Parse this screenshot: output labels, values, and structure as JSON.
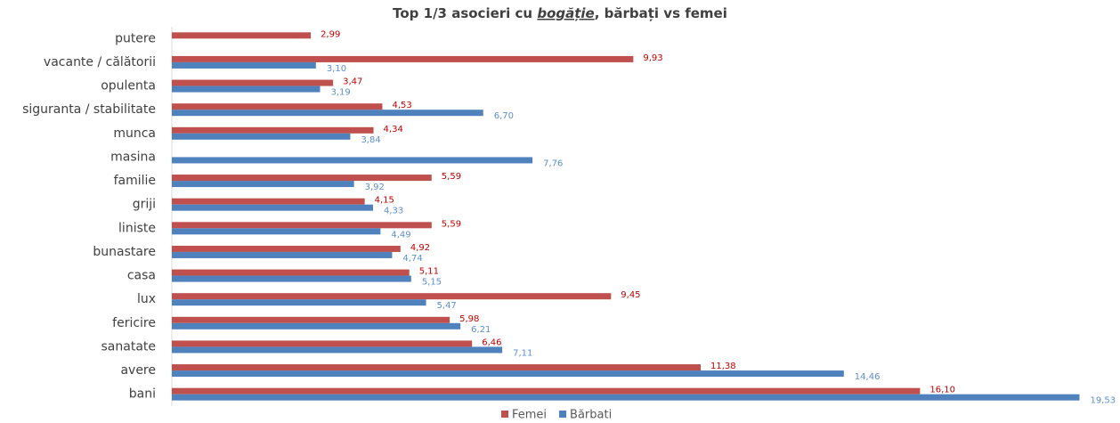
{
  "chart_data": {
    "type": "hbar",
    "title_parts": [
      "Top 1/3 asocieri cu ",
      "bogăție",
      ", bărbați vs femei"
    ],
    "categories": [
      "putere",
      "vacante / călătorii",
      "opulenta",
      "siguranta / stabilitate",
      "munca",
      "masina",
      "familie",
      "griji",
      "liniste",
      "bunastare",
      "casa",
      "lux",
      "fericire",
      "sanatate",
      "avere",
      "bani"
    ],
    "series": [
      {
        "name": "Femei",
        "color": "#c0504d",
        "label_color": "#c00000",
        "values": [
          2.99,
          9.93,
          3.47,
          4.53,
          4.34,
          null,
          5.59,
          4.15,
          5.59,
          4.92,
          5.11,
          9.45,
          5.98,
          6.46,
          11.38,
          16.1
        ],
        "value_labels": [
          "2,99",
          "9,93",
          "3,47",
          "4,53",
          "4,34",
          null,
          "5,59",
          "4,15",
          "5,59",
          "4,92",
          "5,11",
          "9,45",
          "5,98",
          "6,46",
          "11,38",
          "16,10"
        ]
      },
      {
        "name": "Bărbati",
        "color": "#4f81bd",
        "label_color": "#5b8fd0",
        "values": [
          null,
          3.1,
          3.19,
          6.7,
          3.84,
          7.76,
          3.92,
          4.33,
          4.49,
          4.74,
          5.15,
          5.47,
          6.21,
          7.11,
          14.46,
          19.53
        ],
        "value_labels": [
          null,
          "3,10",
          "3,19",
          "6,70",
          "3,84",
          "7,76",
          "3,92",
          "4,33",
          "4,49",
          "4,74",
          "5,15",
          "5,47",
          "6,21",
          "7,11",
          "14,46",
          "19,53"
        ]
      }
    ],
    "xlim": [
      0,
      20
    ],
    "legend": "bottom"
  }
}
